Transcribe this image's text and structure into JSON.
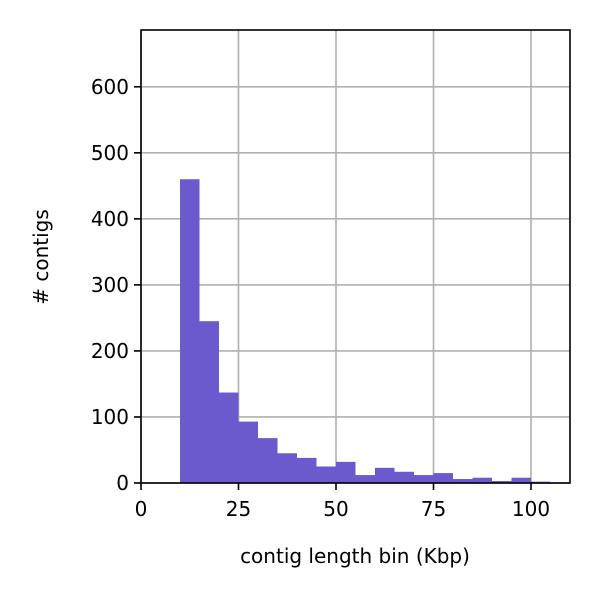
{
  "chart_data": {
    "type": "histogram",
    "xlabel": "contig length bin (Kbp)",
    "ylabel": "# contigs",
    "bins": [
      10,
      15,
      20,
      25,
      30,
      35,
      40,
      45,
      50,
      55,
      60,
      65,
      70,
      75,
      80,
      85,
      90,
      95,
      100,
      105
    ],
    "values": [
      460,
      245,
      137,
      93,
      68,
      45,
      38,
      25,
      32,
      12,
      23,
      17,
      12,
      15,
      6,
      8,
      3,
      8,
      2
    ],
    "color": "#6a5acd",
    "xlim": [
      0,
      110
    ],
    "xticks": [
      0,
      25,
      50,
      75,
      100
    ],
    "ylim": [
      0,
      686
    ],
    "yticks": [
      0,
      100,
      200,
      300,
      400,
      500,
      600
    ],
    "grid": true
  }
}
